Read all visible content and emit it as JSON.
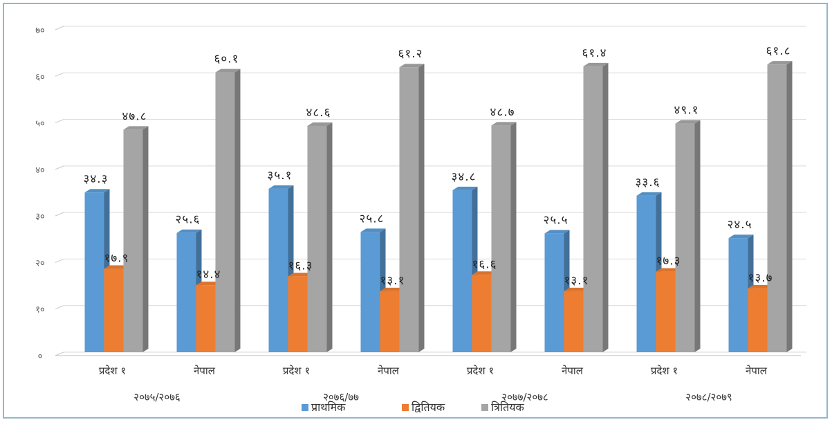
{
  "chart_data": {
    "type": "bar",
    "style": "3d-clustered-column",
    "title": "",
    "xlabel": "",
    "ylabel": "",
    "ylim": [
      0,
      70
    ],
    "y_ticks": [
      0,
      10,
      20,
      30,
      40,
      50,
      60,
      70
    ],
    "y_tick_labels": [
      "०",
      "१०",
      "२०",
      "३०",
      "४०",
      "५०",
      "६०",
      "७०"
    ],
    "categories": [
      "प्रदेश १",
      "नेपाल",
      "प्रदेश १",
      "नेपाल",
      "प्रदेश १",
      "नेपाल",
      "प्रदेश १",
      "नेपाल"
    ],
    "groups": [
      "२०७५/२०७६",
      "२०७६/७७",
      "२०७७/२०७८",
      "२०७८/२०७९"
    ],
    "series": [
      {
        "name": "प्राथमिक",
        "color": "#5b9bd5",
        "values": [
          34.3,
          25.6,
          35.1,
          25.8,
          34.8,
          25.5,
          33.6,
          24.5
        ],
        "labels": [
          "३४.३",
          "२५.६",
          "३५.१",
          "२५.८",
          "३४.८",
          "२५.५",
          "३३.६",
          "२४.५"
        ]
      },
      {
        "name": "द्वितियक",
        "color": "#ed7d31",
        "values": [
          17.9,
          14.4,
          16.3,
          13.1,
          16.6,
          13.1,
          17.3,
          13.7
        ],
        "labels": [
          "१७.९",
          "१४.४",
          "१६.३",
          "१३.१",
          "१६.६",
          "१३.१",
          "१७.३",
          "१३.७"
        ]
      },
      {
        "name": "त्रितियक",
        "color": "#a5a5a5",
        "values": [
          47.8,
          60.1,
          48.6,
          61.2,
          48.7,
          61.4,
          49.1,
          61.8
        ],
        "labels": [
          "४७.८",
          "६०.१",
          "४८.६",
          "६१.२",
          "४८.७",
          "६१.४",
          "४९.१",
          "६१.८"
        ]
      }
    ],
    "grid": true,
    "legend": "bottom"
  }
}
